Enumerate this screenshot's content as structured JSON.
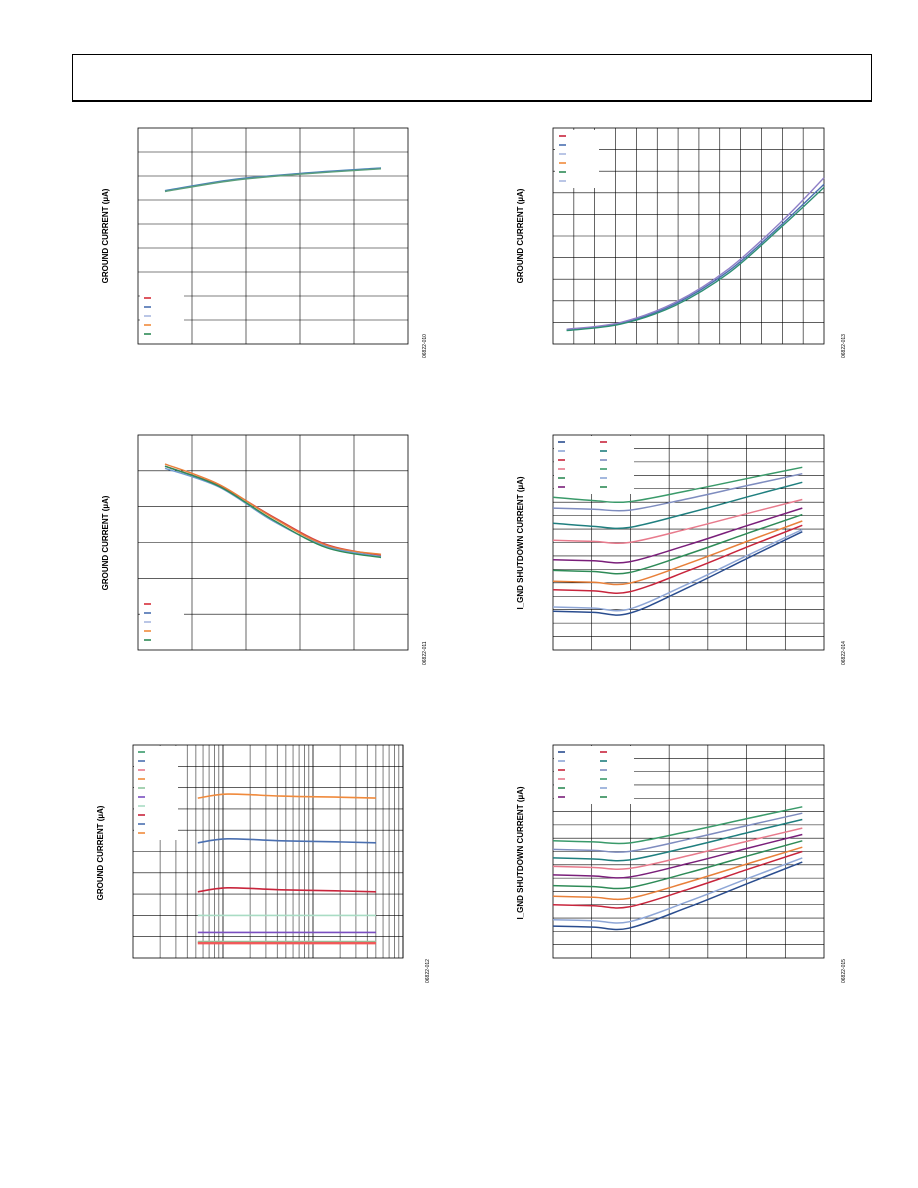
{
  "page": {
    "header_text": ""
  },
  "chart_data": [
    {
      "type": "line",
      "ylabel": "GROUND CURRENT (µA)",
      "figure_id": "06822-010",
      "grid": true,
      "legend_placement": "bottom-left",
      "legend_entries": 5,
      "series": [
        {
          "color": "#2e7a4b",
          "x": [
            0.1,
            0.35,
            0.6,
            0.9
          ],
          "y": [
            0.708,
            0.759,
            0.788,
            0.813
          ]
        },
        {
          "color": "#4b83b8",
          "x": [
            0.1,
            0.35,
            0.6,
            0.9
          ],
          "y": [
            0.71,
            0.761,
            0.79,
            0.815
          ]
        },
        {
          "color": "#5a9e7a",
          "x": [
            0.1,
            0.35,
            0.6,
            0.9
          ],
          "y": [
            0.706,
            0.757,
            0.786,
            0.811
          ]
        }
      ]
    },
    {
      "type": "line",
      "ylabel": "GROUND CURRENT (µA)",
      "figure_id": "06822-013",
      "grid": true,
      "legend_placement": "top-left",
      "legend_entries": 6,
      "series": [
        {
          "color": "#4a6fb0",
          "x": [
            0.05,
            0.25,
            0.45,
            0.65,
            0.85,
            1.0
          ],
          "y": [
            0.065,
            0.095,
            0.185,
            0.34,
            0.56,
            0.74
          ]
        },
        {
          "color": "#8f7fc7",
          "x": [
            0.05,
            0.25,
            0.45,
            0.65,
            0.85,
            1.0
          ],
          "y": [
            0.068,
            0.1,
            0.192,
            0.35,
            0.575,
            0.77
          ]
        },
        {
          "color": "#2e8f74",
          "x": [
            0.05,
            0.25,
            0.45,
            0.65,
            0.85,
            1.0
          ],
          "y": [
            0.062,
            0.092,
            0.178,
            0.33,
            0.55,
            0.725
          ]
        }
      ]
    },
    {
      "type": "line",
      "ylabel": "GROUND CURRENT (µA)",
      "figure_id": "06822-011",
      "grid": true,
      "legend_placement": "bottom-left",
      "legend_entries": 5,
      "series": [
        {
          "color": "#d64545",
          "x": [
            0.1,
            0.3,
            0.5,
            0.7,
            0.9
          ],
          "y": [
            0.855,
            0.765,
            0.62,
            0.49,
            0.44
          ]
        },
        {
          "color": "#e8803a",
          "x": [
            0.1,
            0.3,
            0.5,
            0.7,
            0.9
          ],
          "y": [
            0.865,
            0.77,
            0.615,
            0.485,
            0.445
          ]
        },
        {
          "color": "#6f9bd1",
          "x": [
            0.1,
            0.3,
            0.5,
            0.7,
            0.9
          ],
          "y": [
            0.845,
            0.758,
            0.6,
            0.48,
            0.435
          ]
        },
        {
          "color": "#2e8b57",
          "x": [
            0.1,
            0.3,
            0.5,
            0.7,
            0.9
          ],
          "y": [
            0.855,
            0.762,
            0.605,
            0.475,
            0.43
          ]
        }
      ]
    },
    {
      "type": "line",
      "ylabel": "I_GND SHUTDOWN CURRENT (µA)",
      "figure_id": "06822-014",
      "grid": true,
      "legend_placement": "top-left",
      "legend_entries": 12,
      "series": [
        {
          "color": "#2a4d8f",
          "y0": 0.18,
          "ymin": 0.17,
          "yend": 0.55
        },
        {
          "color": "#8ea6d6",
          "y0": 0.2,
          "ymin": 0.19,
          "yend": 0.56
        },
        {
          "color": "#c8253c",
          "y0": 0.28,
          "ymin": 0.27,
          "yend": 0.58
        },
        {
          "color": "#e8803a",
          "y0": 0.32,
          "ymin": 0.31,
          "yend": 0.6
        },
        {
          "color": "#2e8b57",
          "y0": 0.37,
          "ymin": 0.36,
          "yend": 0.63
        },
        {
          "color": "#7a1f7a",
          "y0": 0.42,
          "ymin": 0.41,
          "yend": 0.66
        },
        {
          "color": "#e87a8c",
          "y0": 0.51,
          "ymin": 0.5,
          "yend": 0.7
        },
        {
          "color": "#1f7f7f",
          "y0": 0.59,
          "ymin": 0.57,
          "yend": 0.78
        },
        {
          "color": "#7e8cbf",
          "y0": 0.66,
          "ymin": 0.65,
          "yend": 0.82
        },
        {
          "color": "#3a9a6a",
          "y0": 0.71,
          "ymin": 0.69,
          "yend": 0.85
        }
      ]
    },
    {
      "type": "line",
      "ylabel": "GROUND CURRENT (µA)",
      "figure_id": "06822-012",
      "grid": true,
      "x_scale": "log",
      "legend_placement": "top-left",
      "legend_entries": 10,
      "series": [
        {
          "color": "#f08a3c",
          "y": 0.76
        },
        {
          "color": "#4a6fb0",
          "y": 0.55
        },
        {
          "color": "#c8253c",
          "y": 0.32
        },
        {
          "color": "#a9dcc4",
          "y": 0.2
        },
        {
          "color": "#7a4fc0",
          "y": 0.12
        },
        {
          "color": "#8fc79e",
          "y": 0.075
        },
        {
          "color": "#f05a5a",
          "y": 0.07
        }
      ]
    },
    {
      "type": "line",
      "ylabel": "I_GND SHUTDOWN CURRENT (µA)",
      "figure_id": "06822-015",
      "grid": true,
      "legend_placement": "top-left",
      "legend_entries": 12,
      "series": [
        {
          "color": "#2a4d8f",
          "y0": 0.15,
          "ymin": 0.14,
          "yend": 0.45
        },
        {
          "color": "#8ea6d6",
          "y0": 0.18,
          "ymin": 0.17,
          "yend": 0.47
        },
        {
          "color": "#c8253c",
          "y0": 0.25,
          "ymin": 0.24,
          "yend": 0.5
        },
        {
          "color": "#e8803a",
          "y0": 0.29,
          "ymin": 0.28,
          "yend": 0.52
        },
        {
          "color": "#2e8b57",
          "y0": 0.34,
          "ymin": 0.33,
          "yend": 0.55
        },
        {
          "color": "#7a1f7a",
          "y0": 0.39,
          "ymin": 0.38,
          "yend": 0.58
        },
        {
          "color": "#e87a8c",
          "y0": 0.43,
          "ymin": 0.42,
          "yend": 0.61
        },
        {
          "color": "#1f7f7f",
          "y0": 0.47,
          "ymin": 0.46,
          "yend": 0.65
        },
        {
          "color": "#7e8cbf",
          "y0": 0.51,
          "ymin": 0.5,
          "yend": 0.68
        },
        {
          "color": "#3a9a6a",
          "y0": 0.55,
          "ymin": 0.54,
          "yend": 0.71
        }
      ]
    }
  ]
}
